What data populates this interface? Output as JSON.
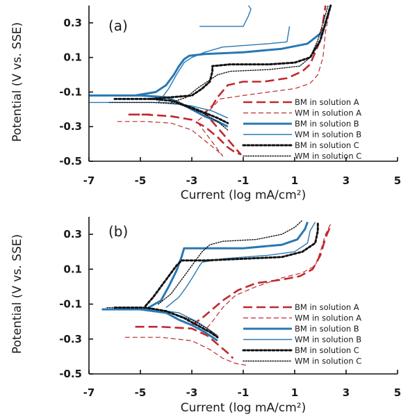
{
  "chart_data": [
    {
      "type": "line",
      "panel_label": "(a)",
      "xlabel": "Current (log mA/cm²)",
      "ylabel": "Potential (V vs. SSE)",
      "xlim": [
        -7,
        5
      ],
      "ylim": [
        -0.5,
        0.4
      ],
      "x_ticks": [
        -7,
        -5,
        -3,
        -1,
        1,
        3,
        5
      ],
      "y_ticks": [
        0.3,
        0.1,
        -0.1,
        -0.3,
        -0.5
      ],
      "legend_position": "bottom-right",
      "series": [
        {
          "name": "BM in solution A",
          "color": "#c0282d",
          "style": "longdash",
          "width": 2.6,
          "points": [
            [
              -4.6,
              -0.23
            ],
            [
              -5.5,
              -0.23
            ],
            [
              -4.8,
              -0.23
            ],
            [
              -3.8,
              -0.24
            ],
            [
              -3.0,
              -0.26
            ],
            [
              -2.5,
              -0.3
            ],
            [
              -2.0,
              -0.36
            ],
            [
              -1.6,
              -0.42
            ],
            [
              -1.3,
              -0.45
            ],
            [
              -1.1,
              -0.46
            ],
            [
              -2.5,
              -0.22
            ],
            [
              -2.2,
              -0.18
            ],
            [
              -2.0,
              -0.13
            ],
            [
              -1.6,
              -0.06
            ],
            [
              -1.0,
              -0.04
            ],
            [
              -0.2,
              -0.04
            ],
            [
              0.7,
              -0.02
            ],
            [
              1.3,
              0.02
            ],
            [
              1.6,
              0.06
            ],
            [
              2.0,
              0.2
            ],
            [
              2.2,
              0.4
            ]
          ]
        },
        {
          "name": "WM in solution A",
          "color": "#c0282d",
          "style": "dash",
          "width": 1.2,
          "points": [
            [
              -5.9,
              -0.27
            ],
            [
              -4.8,
              -0.27
            ],
            [
              -3.8,
              -0.28
            ],
            [
              -3.0,
              -0.32
            ],
            [
              -2.5,
              -0.38
            ],
            [
              -2.0,
              -0.44
            ],
            [
              -1.8,
              -0.47
            ],
            [
              -2.8,
              -0.27
            ],
            [
              -2.4,
              -0.22
            ],
            [
              -1.9,
              -0.14
            ],
            [
              -1.0,
              -0.12
            ],
            [
              0.0,
              -0.1
            ],
            [
              1.0,
              -0.08
            ],
            [
              1.6,
              -0.05
            ],
            [
              1.9,
              0.0
            ],
            [
              2.1,
              0.1
            ],
            [
              2.2,
              0.25
            ],
            [
              2.4,
              0.4
            ]
          ]
        },
        {
          "name": "BM in solution B",
          "color": "#2878b4",
          "style": "solid",
          "width": 3.0,
          "points": [
            [
              -7.0,
              -0.12
            ],
            [
              -5.0,
              -0.12
            ],
            [
              -4.0,
              -0.13
            ],
            [
              -3.5,
              -0.16
            ],
            [
              -3.0,
              -0.2
            ],
            [
              -2.5,
              -0.24
            ],
            [
              -2.0,
              -0.27
            ],
            [
              -1.6,
              -0.3
            ],
            [
              -7.0,
              -0.12
            ],
            [
              -5.2,
              -0.12
            ],
            [
              -4.4,
              -0.1
            ],
            [
              -4.0,
              -0.06
            ],
            [
              -3.7,
              0.0
            ],
            [
              -3.5,
              0.05
            ],
            [
              -3.3,
              0.09
            ],
            [
              -3.1,
              0.11
            ],
            [
              -2.5,
              0.12
            ],
            [
              -1.0,
              0.13
            ],
            [
              0.5,
              0.15
            ],
            [
              1.5,
              0.18
            ],
            [
              2.1,
              0.25
            ],
            [
              2.4,
              0.4
            ]
          ]
        },
        {
          "name": "WM in solution B",
          "color": "#2878b4",
          "style": "solid",
          "width": 1.4,
          "points": [
            [
              -7.0,
              -0.16
            ],
            [
              -5.0,
              -0.16
            ],
            [
              -4.0,
              -0.16
            ],
            [
              -3.0,
              -0.18
            ],
            [
              -2.2,
              -0.21
            ],
            [
              -1.6,
              -0.25
            ],
            [
              -4.3,
              -0.16
            ],
            [
              -3.9,
              -0.08
            ],
            [
              -3.6,
              0.0
            ],
            [
              -3.3,
              0.07
            ],
            [
              -3.0,
              0.1
            ],
            [
              -2.5,
              0.13
            ],
            [
              -1.8,
              0.16
            ],
            [
              0.0,
              0.18
            ],
            [
              0.7,
              0.19
            ],
            [
              0.8,
              0.28
            ],
            [
              -2.7,
              0.28
            ],
            [
              -1.0,
              0.28
            ],
            [
              -0.8,
              0.34
            ],
            [
              -0.7,
              0.38
            ],
            [
              -0.8,
              0.4
            ]
          ]
        },
        {
          "name": "BM in solution C",
          "color": "#111111",
          "style": "dotted-heavy",
          "width": 3.0,
          "points": [
            [
              -6.0,
              -0.14
            ],
            [
              -4.5,
              -0.14
            ],
            [
              -3.8,
              -0.15
            ],
            [
              -3.0,
              -0.19
            ],
            [
              -2.5,
              -0.22
            ],
            [
              -2.0,
              -0.25
            ],
            [
              -1.6,
              -0.28
            ],
            [
              -4.6,
              -0.14
            ],
            [
              -3.0,
              -0.12
            ],
            [
              -2.6,
              -0.08
            ],
            [
              -2.3,
              -0.04
            ],
            [
              -2.2,
              0.02
            ],
            [
              -2.2,
              0.05
            ],
            [
              -1.5,
              0.06
            ],
            [
              0.0,
              0.06
            ],
            [
              1.0,
              0.07
            ],
            [
              1.6,
              0.1
            ],
            [
              2.0,
              0.2
            ],
            [
              2.2,
              0.3
            ],
            [
              2.4,
              0.4
            ]
          ]
        },
        {
          "name": "WM in solution C",
          "color": "#111111",
          "style": "dotted",
          "width": 1.4,
          "points": [
            [
              -6.2,
              -0.16
            ],
            [
              -4.5,
              -0.16
            ],
            [
              -3.5,
              -0.17
            ],
            [
              -2.6,
              -0.22
            ],
            [
              -2.0,
              -0.27
            ],
            [
              -1.6,
              -0.32
            ],
            [
              -3.8,
              -0.16
            ],
            [
              -3.2,
              -0.13
            ],
            [
              -2.8,
              -0.08
            ],
            [
              -2.4,
              -0.04
            ],
            [
              -2.0,
              0.0
            ],
            [
              -1.5,
              0.02
            ],
            [
              0.0,
              0.03
            ],
            [
              1.2,
              0.05
            ],
            [
              1.6,
              0.1
            ],
            [
              1.9,
              0.2
            ],
            [
              2.1,
              0.3
            ],
            [
              2.3,
              0.4
            ]
          ]
        }
      ]
    },
    {
      "type": "line",
      "panel_label": "(b)",
      "xlabel": "Current (log mA/cm²)",
      "ylabel": "Potential (V vs. SSE)",
      "xlim": [
        -7,
        5
      ],
      "ylim": [
        -0.5,
        0.4
      ],
      "x_ticks": [
        -7,
        -5,
        -3,
        -1,
        1,
        3,
        5
      ],
      "y_ticks": [
        0.3,
        0.1,
        -0.1,
        -0.3,
        -0.5
      ],
      "legend_position": "bottom-right",
      "series": [
        {
          "name": "BM in solution A",
          "color": "#c0282d",
          "style": "longdash",
          "width": 2.6,
          "points": [
            [
              -5.2,
              -0.23
            ],
            [
              -4.2,
              -0.23
            ],
            [
              -3.0,
              -0.24
            ],
            [
              -2.4,
              -0.28
            ],
            [
              -2.0,
              -0.33
            ],
            [
              -1.6,
              -0.38
            ],
            [
              -1.4,
              -0.41
            ],
            [
              -3.0,
              -0.22
            ],
            [
              -2.6,
              -0.18
            ],
            [
              -2.2,
              -0.13
            ],
            [
              -1.8,
              -0.08
            ],
            [
              -1.2,
              -0.02
            ],
            [
              -0.5,
              0.02
            ],
            [
              0.5,
              0.04
            ],
            [
              1.2,
              0.06
            ],
            [
              1.7,
              0.1
            ],
            [
              2.0,
              0.18
            ],
            [
              2.2,
              0.28
            ],
            [
              2.4,
              0.35
            ]
          ]
        },
        {
          "name": "WM in solution A",
          "color": "#c0282d",
          "style": "dash",
          "width": 1.2,
          "points": [
            [
              -5.6,
              -0.29
            ],
            [
              -4.2,
              -0.29
            ],
            [
              -3.0,
              -0.31
            ],
            [
              -2.3,
              -0.36
            ],
            [
              -1.8,
              -0.41
            ],
            [
              -1.3,
              -0.44
            ],
            [
              -0.9,
              -0.45
            ],
            [
              -2.6,
              -0.27
            ],
            [
              -2.2,
              -0.2
            ],
            [
              -1.8,
              -0.12
            ],
            [
              -1.3,
              -0.05
            ],
            [
              -0.5,
              0.0
            ],
            [
              0.5,
              0.05
            ],
            [
              1.3,
              0.08
            ],
            [
              1.8,
              0.12
            ],
            [
              2.0,
              0.2
            ],
            [
              2.2,
              0.3
            ],
            [
              2.4,
              0.36
            ]
          ]
        },
        {
          "name": "BM in solution B",
          "color": "#2878b4",
          "style": "solid",
          "width": 3.0,
          "points": [
            [
              -6.5,
              -0.13
            ],
            [
              -5.0,
              -0.13
            ],
            [
              -4.0,
              -0.15
            ],
            [
              -3.5,
              -0.19
            ],
            [
              -3.0,
              -0.22
            ],
            [
              -2.5,
              -0.26
            ],
            [
              -2.0,
              -0.31
            ],
            [
              -6.0,
              -0.13
            ],
            [
              -4.8,
              -0.13
            ],
            [
              -4.2,
              -0.08
            ],
            [
              -3.9,
              0.0
            ],
            [
              -3.6,
              0.09
            ],
            [
              -3.4,
              0.17
            ],
            [
              -3.3,
              0.22
            ],
            [
              -2.5,
              0.22
            ],
            [
              -1.0,
              0.22
            ],
            [
              0.5,
              0.24
            ],
            [
              1.1,
              0.27
            ],
            [
              1.4,
              0.33
            ],
            [
              1.5,
              0.37
            ]
          ]
        },
        {
          "name": "WM in solution B",
          "color": "#2878b4",
          "style": "solid",
          "width": 1.4,
          "points": [
            [
              -6.0,
              -0.13
            ],
            [
              -4.5,
              -0.13
            ],
            [
              -3.5,
              -0.15
            ],
            [
              -2.8,
              -0.2
            ],
            [
              -2.3,
              -0.25
            ],
            [
              -2.0,
              -0.29
            ],
            [
              -4.0,
              -0.12
            ],
            [
              -3.5,
              -0.06
            ],
            [
              -3.2,
              0.0
            ],
            [
              -2.9,
              0.07
            ],
            [
              -2.7,
              0.12
            ],
            [
              -2.6,
              0.14
            ],
            [
              -1.8,
              0.16
            ],
            [
              0.0,
              0.18
            ],
            [
              1.0,
              0.2
            ],
            [
              1.5,
              0.25
            ],
            [
              1.6,
              0.32
            ],
            [
              1.8,
              0.37
            ]
          ]
        },
        {
          "name": "BM in solution C",
          "color": "#111111",
          "style": "dotted-heavy",
          "width": 3.0,
          "points": [
            [
              -6.0,
              -0.12
            ],
            [
              -4.8,
              -0.12
            ],
            [
              -4.0,
              -0.14
            ],
            [
              -3.3,
              -0.18
            ],
            [
              -2.8,
              -0.22
            ],
            [
              -2.3,
              -0.26
            ],
            [
              -2.0,
              -0.29
            ],
            [
              -4.8,
              -0.11
            ],
            [
              -4.5,
              -0.06
            ],
            [
              -4.2,
              0.0
            ],
            [
              -3.9,
              0.06
            ],
            [
              -3.6,
              0.12
            ],
            [
              -3.4,
              0.15
            ],
            [
              -2.5,
              0.15
            ],
            [
              -1.0,
              0.16
            ],
            [
              0.5,
              0.17
            ],
            [
              1.3,
              0.2
            ],
            [
              1.8,
              0.25
            ],
            [
              1.9,
              0.32
            ],
            [
              1.9,
              0.37
            ]
          ]
        },
        {
          "name": "WM in solution C",
          "color": "#111111",
          "style": "dotted",
          "width": 1.4,
          "points": [
            [
              -6.3,
              -0.12
            ],
            [
              -4.8,
              -0.12
            ],
            [
              -4.0,
              -0.14
            ],
            [
              -3.0,
              -0.19
            ],
            [
              -2.4,
              -0.24
            ],
            [
              -2.0,
              -0.28
            ],
            [
              -4.3,
              -0.1
            ],
            [
              -3.8,
              -0.04
            ],
            [
              -3.4,
              0.04
            ],
            [
              -3.0,
              0.12
            ],
            [
              -2.6,
              0.2
            ],
            [
              -2.3,
              0.24
            ],
            [
              -1.8,
              0.26
            ],
            [
              -0.5,
              0.27
            ],
            [
              0.5,
              0.3
            ],
            [
              1.0,
              0.34
            ],
            [
              1.3,
              0.38
            ]
          ]
        }
      ]
    }
  ]
}
